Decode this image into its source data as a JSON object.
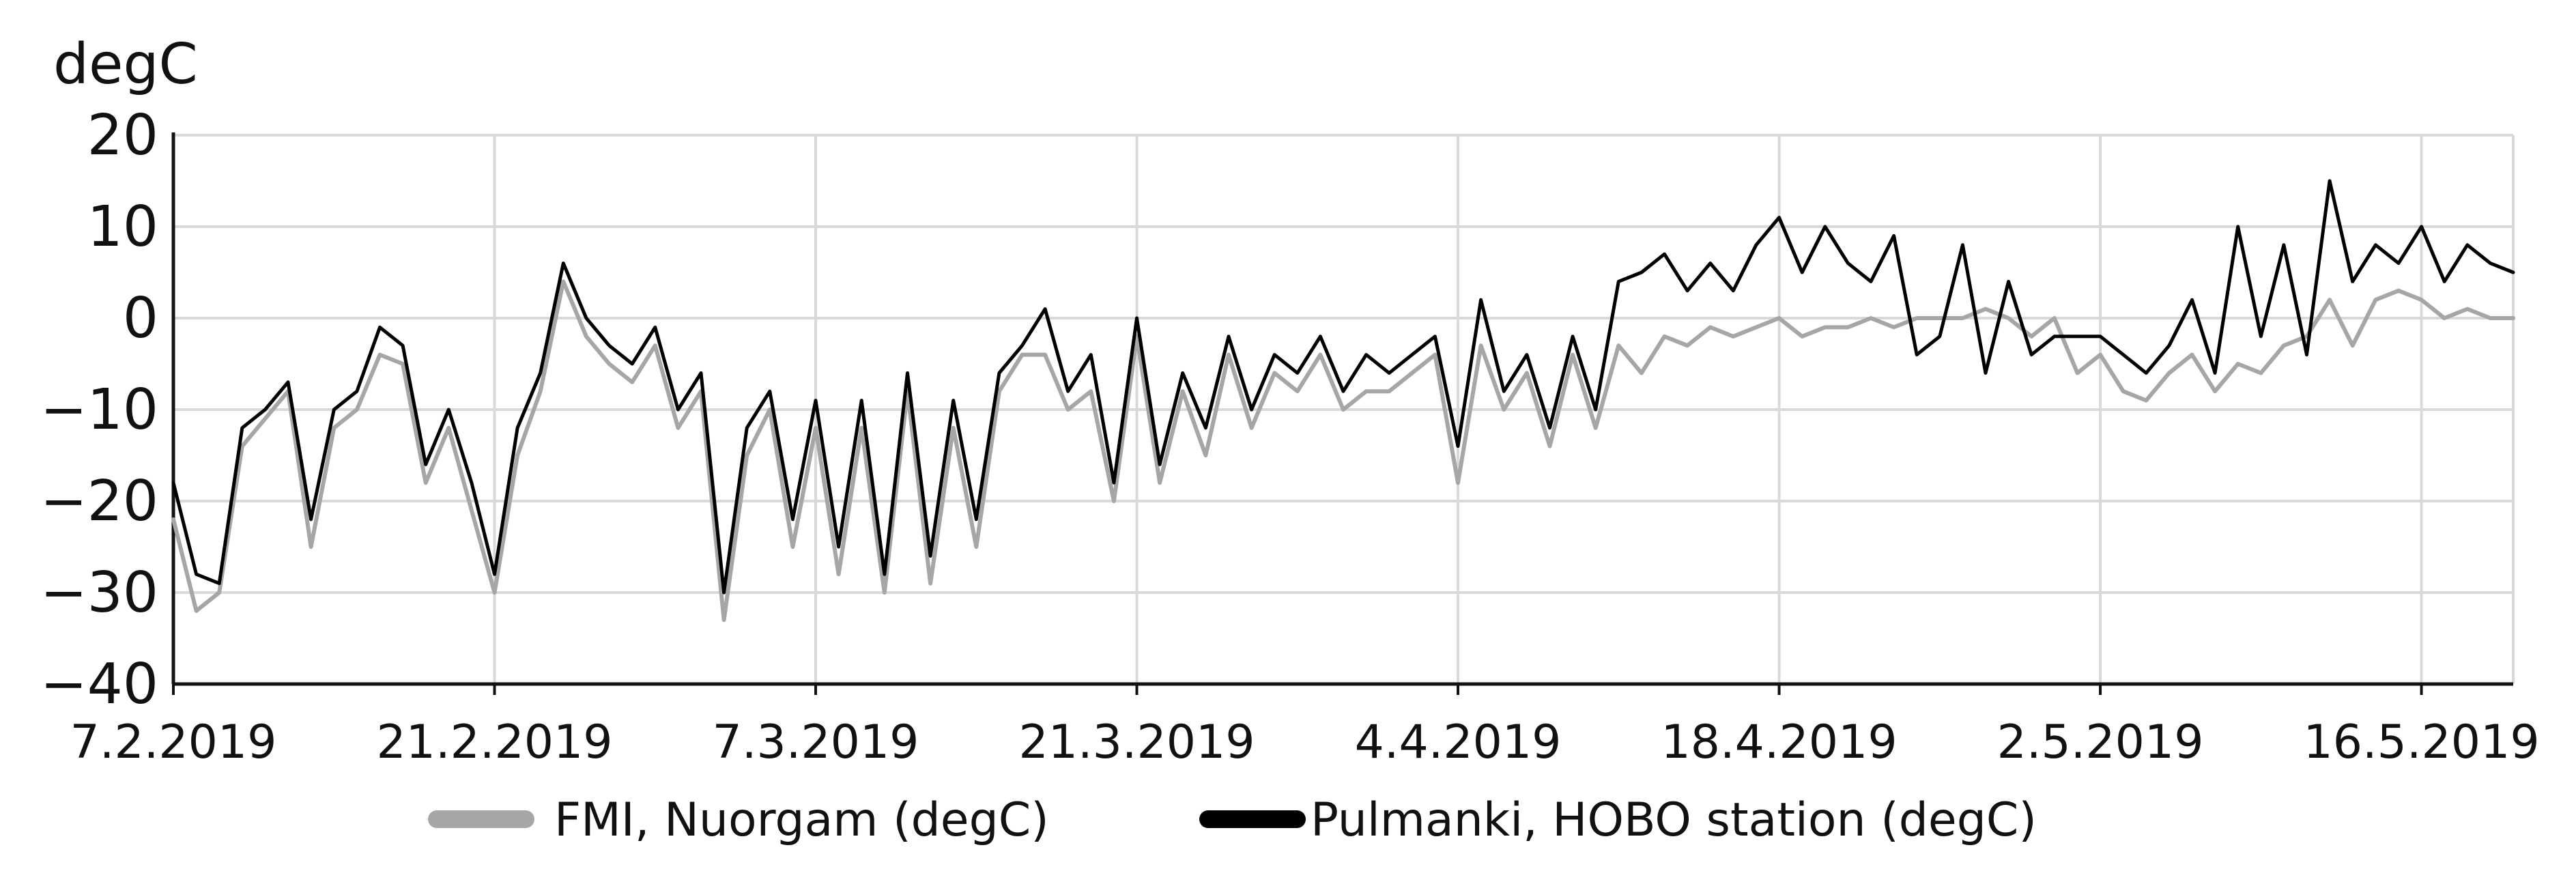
{
  "chart_data": {
    "type": "line",
    "ylabel": "degC",
    "xlabel": "",
    "title": "",
    "ylim": [
      -40,
      20
    ],
    "yticks": [
      20,
      10,
      0,
      -10,
      -20,
      -30,
      -40
    ],
    "ytick_labels": [
      "20",
      "10",
      "0",
      "−10",
      "−20",
      "−30",
      "−40"
    ],
    "xlim": [
      "2019-02-07",
      "2019-05-20"
    ],
    "xticks": [
      "2019-02-07",
      "2019-02-21",
      "2019-03-07",
      "2019-03-21",
      "2019-04-04",
      "2019-04-18",
      "2019-05-02",
      "2019-05-16"
    ],
    "xtick_labels": [
      "7.2.2019",
      "21.2.2019",
      "7.3.2019",
      "21.3.2019",
      "4.4.2019",
      "18.4.2019",
      "2.5.2019",
      "16.5.2019"
    ],
    "grid": true,
    "legend_position": "bottom",
    "series": [
      {
        "name": "FMI, Nuorgam (degC)",
        "color": "#a6a6a6",
        "x": [
          "2019-02-07",
          "2019-02-08",
          "2019-02-09",
          "2019-02-10",
          "2019-02-11",
          "2019-02-12",
          "2019-02-13",
          "2019-02-14",
          "2019-02-15",
          "2019-02-16",
          "2019-02-17",
          "2019-02-18",
          "2019-02-19",
          "2019-02-20",
          "2019-02-21",
          "2019-02-22",
          "2019-02-23",
          "2019-02-24",
          "2019-02-25",
          "2019-02-26",
          "2019-02-27",
          "2019-02-28",
          "2019-03-01",
          "2019-03-02",
          "2019-03-03",
          "2019-03-04",
          "2019-03-05",
          "2019-03-06",
          "2019-03-07",
          "2019-03-08",
          "2019-03-09",
          "2019-03-10",
          "2019-03-11",
          "2019-03-12",
          "2019-03-13",
          "2019-03-14",
          "2019-03-15",
          "2019-03-16",
          "2019-03-17",
          "2019-03-18",
          "2019-03-19",
          "2019-03-20",
          "2019-03-21",
          "2019-03-22",
          "2019-03-23",
          "2019-03-24",
          "2019-03-25",
          "2019-03-26",
          "2019-03-27",
          "2019-03-28",
          "2019-03-29",
          "2019-03-30",
          "2019-03-31",
          "2019-04-01",
          "2019-04-02",
          "2019-04-03",
          "2019-04-04",
          "2019-04-05",
          "2019-04-06",
          "2019-04-07",
          "2019-04-08",
          "2019-04-09",
          "2019-04-10",
          "2019-04-11",
          "2019-04-12",
          "2019-04-13",
          "2019-04-14",
          "2019-04-15",
          "2019-04-16",
          "2019-04-17",
          "2019-04-18",
          "2019-04-19",
          "2019-04-20",
          "2019-04-21",
          "2019-04-22",
          "2019-04-23",
          "2019-04-24",
          "2019-04-25",
          "2019-04-26",
          "2019-04-27",
          "2019-04-28",
          "2019-04-29",
          "2019-04-30",
          "2019-05-01",
          "2019-05-02",
          "2019-05-03",
          "2019-05-04",
          "2019-05-05",
          "2019-05-06",
          "2019-05-07",
          "2019-05-08",
          "2019-05-09",
          "2019-05-10",
          "2019-05-11",
          "2019-05-12",
          "2019-05-13",
          "2019-05-14",
          "2019-05-15",
          "2019-05-16",
          "2019-05-17",
          "2019-05-18",
          "2019-05-19",
          "2019-05-20"
        ],
        "y": [
          -22,
          -32,
          -30,
          -14,
          -11,
          -8,
          -25,
          -12,
          -10,
          -4,
          -5,
          -18,
          -12,
          -21,
          -30,
          -15,
          -8,
          4,
          -2,
          -5,
          -7,
          -3,
          -12,
          -8,
          -33,
          -15,
          -10,
          -25,
          -12,
          -28,
          -12,
          -30,
          -8,
          -29,
          -12,
          -25,
          -8,
          -4,
          -4,
          -10,
          -8,
          -20,
          -2,
          -18,
          -8,
          -15,
          -4,
          -12,
          -6,
          -8,
          -4,
          -10,
          -8,
          -8,
          -6,
          -4,
          -18,
          -3,
          -10,
          -6,
          -14,
          -4,
          -12,
          -3,
          -6,
          -2,
          -3,
          -1,
          -2,
          -1,
          0,
          -2,
          -1,
          -1,
          0,
          -1,
          0,
          0,
          0,
          1,
          0,
          -2,
          0,
          -6,
          -4,
          -8,
          -9,
          -6,
          -4,
          -8,
          -5,
          -6,
          -3,
          -2,
          2,
          -3,
          2,
          3,
          2,
          0,
          1,
          0,
          0
        ]
      },
      {
        "name": "Pulmanki, HOBO station (degC)",
        "color": "#000000",
        "x": [
          "2019-02-07",
          "2019-02-08",
          "2019-02-09",
          "2019-02-10",
          "2019-02-11",
          "2019-02-12",
          "2019-02-13",
          "2019-02-14",
          "2019-02-15",
          "2019-02-16",
          "2019-02-17",
          "2019-02-18",
          "2019-02-19",
          "2019-02-20",
          "2019-02-21",
          "2019-02-22",
          "2019-02-23",
          "2019-02-24",
          "2019-02-25",
          "2019-02-26",
          "2019-02-27",
          "2019-02-28",
          "2019-03-01",
          "2019-03-02",
          "2019-03-03",
          "2019-03-04",
          "2019-03-05",
          "2019-03-06",
          "2019-03-07",
          "2019-03-08",
          "2019-03-09",
          "2019-03-10",
          "2019-03-11",
          "2019-03-12",
          "2019-03-13",
          "2019-03-14",
          "2019-03-15",
          "2019-03-16",
          "2019-03-17",
          "2019-03-18",
          "2019-03-19",
          "2019-03-20",
          "2019-03-21",
          "2019-03-22",
          "2019-03-23",
          "2019-03-24",
          "2019-03-25",
          "2019-03-26",
          "2019-03-27",
          "2019-03-28",
          "2019-03-29",
          "2019-03-30",
          "2019-03-31",
          "2019-04-01",
          "2019-04-02",
          "2019-04-03",
          "2019-04-04",
          "2019-04-05",
          "2019-04-06",
          "2019-04-07",
          "2019-04-08",
          "2019-04-09",
          "2019-04-10",
          "2019-04-11",
          "2019-04-12",
          "2019-04-13",
          "2019-04-14",
          "2019-04-15",
          "2019-04-16",
          "2019-04-17",
          "2019-04-18",
          "2019-04-19",
          "2019-04-20",
          "2019-04-21",
          "2019-04-22",
          "2019-04-23",
          "2019-04-24",
          "2019-04-25",
          "2019-04-26",
          "2019-04-27",
          "2019-04-28",
          "2019-04-29",
          "2019-04-30",
          "2019-05-01",
          "2019-05-02",
          "2019-05-03",
          "2019-05-04",
          "2019-05-05",
          "2019-05-06",
          "2019-05-07",
          "2019-05-08",
          "2019-05-09",
          "2019-05-10",
          "2019-05-11",
          "2019-05-12",
          "2019-05-13",
          "2019-05-14",
          "2019-05-15",
          "2019-05-16",
          "2019-05-17",
          "2019-05-18",
          "2019-05-19",
          "2019-05-20"
        ],
        "y": [
          -18,
          -28,
          -29,
          -12,
          -10,
          -7,
          -22,
          -10,
          -8,
          -1,
          -3,
          -16,
          -10,
          -18,
          -28,
          -12,
          -6,
          6,
          0,
          -3,
          -5,
          -1,
          -10,
          -6,
          -30,
          -12,
          -8,
          -22,
          -9,
          -25,
          -9,
          -28,
          -6,
          -26,
          -9,
          -22,
          -6,
          -3,
          1,
          -8,
          -4,
          -18,
          0,
          -16,
          -6,
          -12,
          -2,
          -10,
          -4,
          -6,
          -2,
          -8,
          -4,
          -6,
          -4,
          -2,
          -14,
          2,
          -8,
          -4,
          -12,
          -2,
          -10,
          4,
          5,
          7,
          3,
          6,
          3,
          8,
          11,
          5,
          10,
          6,
          4,
          9,
          -4,
          -2,
          8,
          -6,
          4,
          -4,
          -2,
          -2,
          -2,
          -4,
          -6,
          -3,
          2,
          -6,
          10,
          -2,
          8,
          -4,
          15,
          4,
          8,
          6,
          10,
          4,
          8,
          6,
          5
        ]
      }
    ]
  }
}
